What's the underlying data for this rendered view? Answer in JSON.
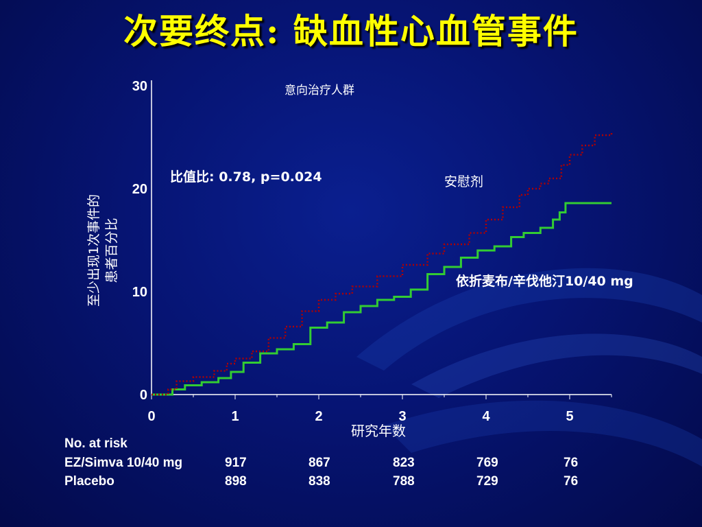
{
  "title": "次要终点: 缺血性心血管事件",
  "chart_data": {
    "type": "line",
    "subtitle": "意向治疗人群",
    "annotation": "比值比:  0.78,  p=0.024",
    "xlabel": "研究年数",
    "ylabel_line1": "至少出现1次事件的",
    "ylabel_line2": "患者百分比",
    "xlim": [
      0,
      5.5
    ],
    "ylim": [
      0,
      30
    ],
    "xticks": [
      "0",
      "1",
      "2",
      "3",
      "4",
      "5"
    ],
    "yticks": [
      "0",
      "10",
      "20",
      "30"
    ],
    "grid": false,
    "series": [
      {
        "name": "安慰剂",
        "color": "#b00000",
        "style": "dotted-step",
        "x": [
          0,
          0.2,
          0.3,
          0.5,
          0.75,
          0.9,
          1.0,
          1.2,
          1.4,
          1.6,
          1.8,
          2.0,
          2.2,
          2.4,
          2.7,
          3.0,
          3.3,
          3.5,
          3.8,
          4.0,
          4.2,
          4.4,
          4.5,
          4.65,
          4.75,
          4.9,
          5.0,
          5.15,
          5.3,
          5.5
        ],
        "y": [
          0,
          0.5,
          1.3,
          1.7,
          2.3,
          3.0,
          3.5,
          4.2,
          5.5,
          6.6,
          8.1,
          9.2,
          9.8,
          10.5,
          11.5,
          12.6,
          13.7,
          14.6,
          15.7,
          17.0,
          18.2,
          19.4,
          20.0,
          20.5,
          21.0,
          22.3,
          23.3,
          24.2,
          25.2,
          25.4
        ]
      },
      {
        "name": "依折麦布/辛伐他汀10/40 mg",
        "color": "#33cc33",
        "style": "solid-step",
        "x": [
          0,
          0.25,
          0.4,
          0.6,
          0.8,
          0.95,
          1.1,
          1.3,
          1.5,
          1.7,
          1.9,
          2.1,
          2.3,
          2.5,
          2.7,
          2.9,
          3.1,
          3.3,
          3.5,
          3.7,
          3.9,
          4.1,
          4.3,
          4.45,
          4.65,
          4.8,
          4.88,
          4.95,
          5.5
        ],
        "y": [
          0,
          0.5,
          0.9,
          1.2,
          1.6,
          2.2,
          3.1,
          4.0,
          4.4,
          4.9,
          6.5,
          7.0,
          8.0,
          8.6,
          9.2,
          9.5,
          10.2,
          11.7,
          12.4,
          13.3,
          14.0,
          14.4,
          15.3,
          15.7,
          16.2,
          17.0,
          17.7,
          18.6,
          18.6
        ]
      }
    ],
    "series_labels": [
      "安慰剂",
      "依折麦布/辛伐他汀10/40 mg"
    ]
  },
  "risk_table": {
    "title": "No. at risk",
    "rows": [
      {
        "label": "EZ/Simva 10/40 mg",
        "values": [
          "917",
          "867",
          "823",
          "769",
          "76"
        ]
      },
      {
        "label": "Placebo",
        "values": [
          "898",
          "838",
          "788",
          "729",
          "76"
        ]
      }
    ]
  }
}
